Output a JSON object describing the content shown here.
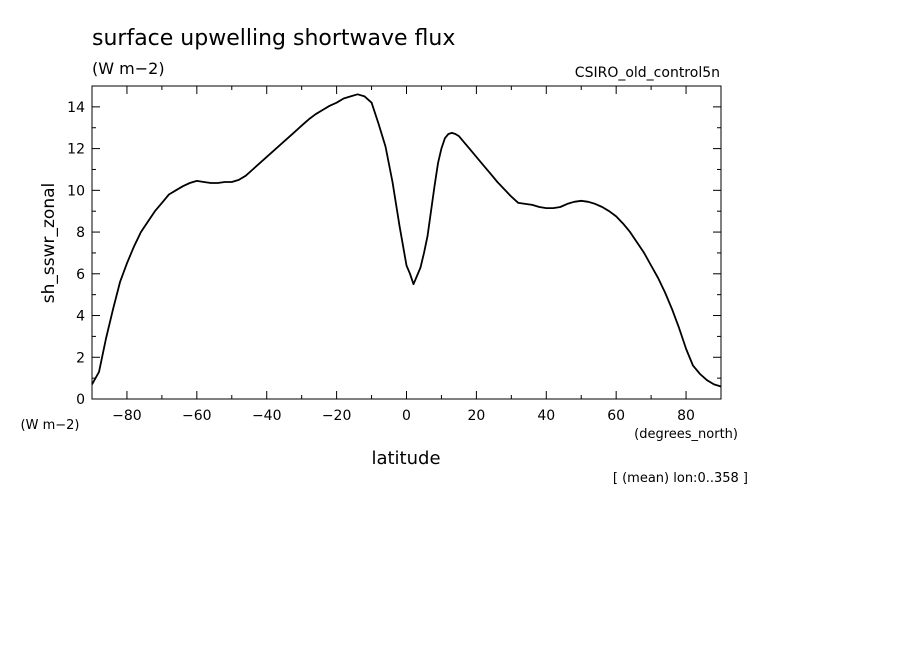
{
  "chart_data": {
    "type": "line",
    "title": "surface upwelling shortwave flux",
    "units": "(W m−2)",
    "dataset": "CSIRO_old_control5n",
    "xlabel": "latitude",
    "xunits": "(degrees_north)",
    "ylabel": "sh_sswr_zonal",
    "yunits": "(W m−2)",
    "note": "[ (mean) lon:0..358 ]",
    "xlim": [
      -90,
      90
    ],
    "ylim": [
      0,
      15
    ],
    "xticks": [
      -80,
      -60,
      -40,
      -20,
      0,
      20,
      40,
      60,
      80
    ],
    "xtick_labels": [
      "−80",
      "−60",
      "−40",
      "−20",
      "0",
      "20",
      "40",
      "60",
      "80"
    ],
    "yticks": [
      0,
      2,
      4,
      6,
      8,
      10,
      12,
      14
    ],
    "yminor": [
      1,
      3,
      5,
      7,
      9,
      11,
      13
    ],
    "series": [
      {
        "x": [
          -90,
          -88,
          -86,
          -84,
          -82,
          -80,
          -78,
          -76,
          -74,
          -72,
          -70,
          -68,
          -66,
          -64,
          -62,
          -60,
          -58,
          -56,
          -54,
          -52,
          -50,
          -48,
          -46,
          -44,
          -42,
          -40,
          -38,
          -36,
          -34,
          -32,
          -30,
          -28,
          -26,
          -24,
          -22,
          -20,
          -18,
          -16,
          -14,
          -12,
          -10,
          -8,
          -6,
          -4,
          -2,
          0,
          1,
          2,
          3,
          4,
          5,
          6,
          7,
          8,
          9,
          10,
          11,
          12,
          13,
          14,
          15,
          16,
          18,
          20,
          22,
          24,
          26,
          28,
          30,
          32,
          34,
          36,
          38,
          40,
          42,
          44,
          46,
          48,
          50,
          52,
          54,
          56,
          58,
          60,
          62,
          64,
          66,
          68,
          70,
          72,
          74,
          76,
          78,
          80,
          82,
          84,
          86,
          88,
          90
        ],
        "y": [
          0.7,
          1.3,
          2.9,
          4.3,
          5.6,
          6.5,
          7.3,
          8.0,
          8.5,
          9.0,
          9.4,
          9.8,
          10.0,
          10.2,
          10.35,
          10.45,
          10.4,
          10.35,
          10.35,
          10.4,
          10.4,
          10.5,
          10.7,
          11.0,
          11.3,
          11.6,
          11.9,
          12.2,
          12.5,
          12.8,
          13.1,
          13.4,
          13.65,
          13.85,
          14.05,
          14.2,
          14.4,
          14.5,
          14.6,
          14.5,
          14.2,
          13.2,
          12.1,
          10.4,
          8.3,
          6.4,
          6.0,
          5.5,
          5.9,
          6.3,
          7.0,
          7.8,
          9.0,
          10.2,
          11.3,
          12.0,
          12.5,
          12.7,
          12.75,
          12.7,
          12.6,
          12.4,
          12.0,
          11.6,
          11.2,
          10.8,
          10.4,
          10.05,
          9.7,
          9.4,
          9.35,
          9.3,
          9.2,
          9.15,
          9.15,
          9.2,
          9.35,
          9.45,
          9.5,
          9.45,
          9.35,
          9.2,
          9.0,
          8.75,
          8.4,
          8.0,
          7.5,
          7.0,
          6.4,
          5.8,
          5.1,
          4.3,
          3.4,
          2.4,
          1.6,
          1.2,
          0.9,
          0.7,
          0.6
        ]
      }
    ]
  }
}
